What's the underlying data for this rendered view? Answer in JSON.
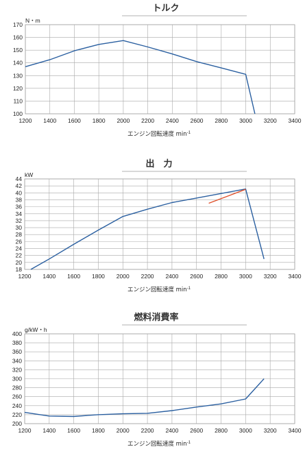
{
  "chart_data": [
    {
      "type": "line",
      "title": "トルク",
      "ylabel": "N・m",
      "xlabel": "エンジン回転速度 min",
      "xlabel_sup": "-1",
      "xlim": [
        1200,
        3400
      ],
      "ylim": [
        100,
        170
      ],
      "xticks": [
        1200,
        1400,
        1600,
        1800,
        2000,
        2200,
        2400,
        2600,
        2800,
        3000,
        3200,
        3400
      ],
      "yticks": [
        100,
        110,
        120,
        130,
        140,
        150,
        160,
        170
      ],
      "grid": true,
      "series": [
        {
          "color": "#2a5fa0",
          "x": [
            1200,
            1400,
            1600,
            1800,
            2000,
            2200,
            2400,
            2600,
            2800,
            3000,
            3075
          ],
          "y": [
            137,
            142.5,
            149.5,
            154.5,
            157.5,
            152.5,
            147,
            141,
            136,
            131,
            100
          ]
        }
      ]
    },
    {
      "type": "line",
      "title": "出　力",
      "ylabel": "kW",
      "xlabel": "エンジン回転速度 min",
      "xlabel_sup": "-1",
      "xlim": [
        1200,
        3400
      ],
      "ylim": [
        18,
        44
      ],
      "xticks": [
        1200,
        1400,
        1600,
        1800,
        2000,
        2200,
        2400,
        2600,
        2800,
        3000,
        3200,
        3400
      ],
      "yticks": [
        18,
        20,
        22,
        24,
        26,
        28,
        30,
        32,
        34,
        36,
        38,
        40,
        42,
        44
      ],
      "grid": true,
      "series": [
        {
          "color": "#2a5fa0",
          "x": [
            1250,
            1400,
            1600,
            1800,
            2000,
            2200,
            2400,
            2600,
            2800,
            3000,
            3150
          ],
          "y": [
            18,
            21,
            25.2,
            29.3,
            33.2,
            35.3,
            37.2,
            38.5,
            39.8,
            41.1,
            21
          ]
        },
        {
          "color": "#e0502a",
          "x": [
            2700,
            2850,
            3000
          ],
          "y": [
            37,
            39,
            41
          ]
        }
      ]
    },
    {
      "type": "line",
      "title": "燃料消費率",
      "ylabel": "g/kW・h",
      "xlabel": "エンジン回転速度 min",
      "xlabel_sup": "-1",
      "xlim": [
        1200,
        3400
      ],
      "ylim": [
        200,
        400
      ],
      "xticks": [
        1200,
        1400,
        1600,
        1800,
        2000,
        2200,
        2400,
        2600,
        2800,
        3000,
        3200,
        3400
      ],
      "yticks": [
        200,
        220,
        240,
        260,
        280,
        300,
        320,
        340,
        360,
        380,
        400
      ],
      "grid": true,
      "series": [
        {
          "color": "#2a5fa0",
          "x": [
            1200,
            1400,
            1600,
            1800,
            2000,
            2200,
            2400,
            2600,
            2800,
            3000,
            3150
          ],
          "y": [
            225,
            217,
            216,
            220,
            222,
            223,
            229,
            237,
            244,
            255,
            300
          ]
        }
      ]
    }
  ]
}
